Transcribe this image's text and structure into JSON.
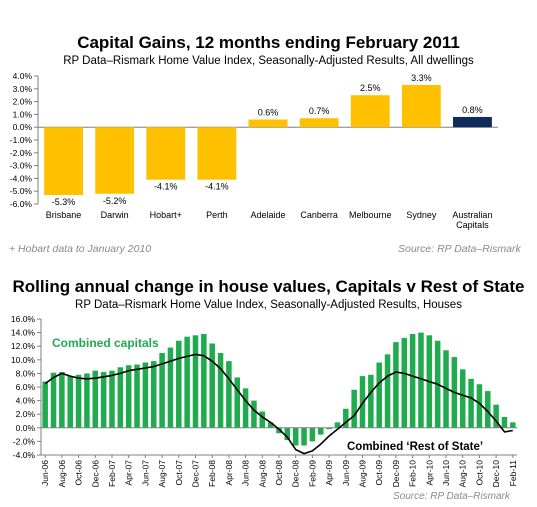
{
  "chart_data": [
    {
      "type": "bar",
      "title": "Capital Gains, 12 months ending February 2011",
      "subtitle": "RP Data–Rismark Home Value Index, Seasonally-Adjusted Results, All dwellings",
      "categories": [
        "Brisbane",
        "Darwin",
        "Hobart+",
        "Perth",
        "Adelaide",
        "Canberra",
        "Melbourne",
        "Sydney",
        "Australian Capitals"
      ],
      "values": [
        -5.3,
        -5.2,
        -4.1,
        -4.1,
        0.6,
        0.7,
        2.5,
        3.3,
        0.8
      ],
      "value_labels": [
        "-5.3%",
        "-5.2%",
        "-4.1%",
        "-4.1%",
        "0.6%",
        "0.7%",
        "2.5%",
        "3.3%",
        "0.8%"
      ],
      "colors": [
        "#ffc000",
        "#ffc000",
        "#ffc000",
        "#ffc000",
        "#ffc000",
        "#ffc000",
        "#ffc000",
        "#ffc000",
        "#0f2b5c"
      ],
      "ylim": [
        -6.0,
        4.0
      ],
      "yticks": [
        "4.0%",
        "3.0%",
        "2.0%",
        "1.0%",
        "0.0%",
        "-1.0%",
        "-2.0%",
        "-3.0%",
        "-4.0%",
        "-5.0%",
        "-6.0%"
      ],
      "footnote": "+ Hobart data to January 2010",
      "source": "Source: RP Data–Rismark",
      "grid": false,
      "legend": "none"
    },
    {
      "type": "bar",
      "title": "Rolling annual change in house values, Capitals v Rest of State",
      "subtitle": "RP Data–Rismark Home Value Index, Seasonally-Adjusted Results, Houses",
      "categories": [
        "Jun-06",
        "Jul-06",
        "Aug-06",
        "Sep-06",
        "Oct-06",
        "Nov-06",
        "Dec-06",
        "Jan-07",
        "Feb-07",
        "Mar-07",
        "Apr-07",
        "May-07",
        "Jun-07",
        "Jul-07",
        "Aug-07",
        "Sep-07",
        "Oct-07",
        "Nov-07",
        "Dec-07",
        "Jan-08",
        "Feb-08",
        "Mar-08",
        "Apr-08",
        "May-08",
        "Jun-08",
        "Jul-08",
        "Aug-08",
        "Sep-08",
        "Oct-08",
        "Nov-08",
        "Dec-08",
        "Jan-09",
        "Feb-09",
        "Mar-09",
        "Apr-09",
        "May-09",
        "Jun-09",
        "Jul-09",
        "Aug-09",
        "Sep-09",
        "Oct-09",
        "Nov-09",
        "Dec-09",
        "Jan-10",
        "Feb-10",
        "Mar-10",
        "Apr-10",
        "May-10",
        "Jun-10",
        "Jul-10",
        "Aug-10",
        "Sep-10",
        "Oct-10",
        "Nov-10",
        "Dec-10",
        "Jan-11",
        "Feb-11"
      ],
      "tick_labels": [
        "Jun-06",
        "Aug-06",
        "Oct-06",
        "Dec-06",
        "Feb-07",
        "Apr-07",
        "Jun-07",
        "Aug-07",
        "Oct-07",
        "Dec-07",
        "Feb-08",
        "Apr-08",
        "Jun-08",
        "Aug-08",
        "Oct-08",
        "Dec-08",
        "Feb-09",
        "Apr-09",
        "Jun-09",
        "Aug-09",
        "Oct-09",
        "Dec-09",
        "Feb-10",
        "Apr-10",
        "Jun-10",
        "Aug-10",
        "Oct-10",
        "Dec-10",
        "Feb-11"
      ],
      "series": [
        {
          "name": "Combined capitals",
          "kind": "bar",
          "color": "#1fab4e",
          "values": [
            6.8,
            8.1,
            8.2,
            7.6,
            7.8,
            8.0,
            8.4,
            8.2,
            8.4,
            8.9,
            9.2,
            9.3,
            9.6,
            9.8,
            11.0,
            11.8,
            12.8,
            13.4,
            13.6,
            13.8,
            12.4,
            11.0,
            9.8,
            7.4,
            5.8,
            4.0,
            2.4,
            0.8,
            -0.8,
            -1.8,
            -2.6,
            -2.6,
            -2.0,
            -1.0,
            -0.2,
            0.8,
            2.8,
            5.6,
            7.6,
            7.8,
            9.6,
            10.8,
            12.6,
            13.2,
            13.8,
            14.0,
            13.6,
            12.8,
            11.4,
            10.4,
            8.6,
            7.2,
            6.4,
            5.4,
            3.4,
            1.6,
            0.8
          ]
        },
        {
          "name": "Combined ‘Rest of State’",
          "kind": "line",
          "color": "#000000",
          "values": [
            6.5,
            7.4,
            8.0,
            7.6,
            7.3,
            7.2,
            7.3,
            7.5,
            7.7,
            8.0,
            8.4,
            8.6,
            8.8,
            9.0,
            9.4,
            9.8,
            10.2,
            10.5,
            10.8,
            10.6,
            9.8,
            8.7,
            7.2,
            5.6,
            4.0,
            2.6,
            1.6,
            0.8,
            -0.2,
            -1.4,
            -3.2,
            -3.8,
            -3.4,
            -2.4,
            -1.2,
            -0.2,
            0.8,
            1.8,
            3.6,
            5.2,
            6.6,
            7.6,
            8.2,
            8.0,
            7.6,
            7.2,
            6.8,
            6.4,
            5.8,
            5.2,
            4.8,
            4.4,
            3.6,
            2.4,
            1.0,
            -0.6,
            -0.4
          ]
        }
      ],
      "ylim": [
        -4.0,
        16.0
      ],
      "yticks": [
        "16.0%",
        "14.0%",
        "12.0%",
        "10.0%",
        "8.0%",
        "6.0%",
        "4.0%",
        "2.0%",
        "0.0%",
        "-2.0%",
        "-4.0%"
      ],
      "source": "Source: RP Data–Rismark",
      "grid": false,
      "legend": "inline labels"
    }
  ]
}
